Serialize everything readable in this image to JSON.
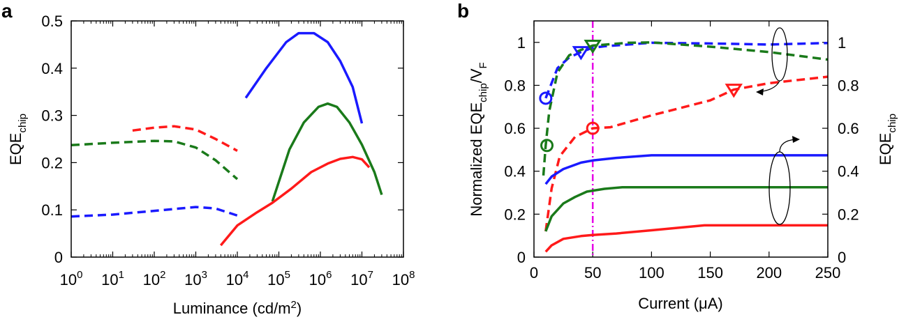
{
  "chart_data": [
    {
      "panel": "a",
      "type": "line",
      "xscale": "log",
      "xlim": [
        1,
        100000000
      ],
      "ylim": [
        0,
        0.5
      ],
      "xlabel_parts": [
        "Luminance (cd/m",
        "2",
        ")"
      ],
      "ylabel_main": "EQE",
      "ylabel_sub": "chip",
      "xtick_exponents": [
        "0",
        "1",
        "2",
        "3",
        "4",
        "5",
        "6",
        "7",
        "8"
      ],
      "ytick_labels": [
        "0",
        "0.1",
        "0.2",
        "0.3",
        "0.4",
        "0.5"
      ],
      "series": [
        {
          "name": "green-dashed",
          "color": "#1a7a1a",
          "dash": true,
          "points": [
            [
              1,
              0.237
            ],
            [
              10,
              0.242
            ],
            [
              100,
              0.246
            ],
            [
              300,
              0.245
            ],
            [
              1000,
              0.232
            ],
            [
              3000,
              0.205
            ],
            [
              10000,
              0.165
            ]
          ]
        },
        {
          "name": "red-dashed",
          "color": "#ff1a1a",
          "dash": true,
          "points": [
            [
              30,
              0.268
            ],
            [
              100,
              0.274
            ],
            [
              300,
              0.277
            ],
            [
              1000,
              0.27
            ],
            [
              3000,
              0.25
            ],
            [
              10000,
              0.225
            ]
          ]
        },
        {
          "name": "blue-dashed",
          "color": "#1a1aff",
          "dash": true,
          "points": [
            [
              1,
              0.086
            ],
            [
              10,
              0.09
            ],
            [
              100,
              0.098
            ],
            [
              1000,
              0.106
            ],
            [
              3000,
              0.103
            ],
            [
              10000,
              0.088
            ]
          ]
        },
        {
          "name": "blue-solid",
          "color": "#1a1aff",
          "dash": false,
          "points": [
            [
              16000,
              0.337
            ],
            [
              50000,
              0.4
            ],
            [
              150000,
              0.455
            ],
            [
              300000,
              0.474
            ],
            [
              700000,
              0.474
            ],
            [
              1500000,
              0.455
            ],
            [
              3000000,
              0.415
            ],
            [
              6000000,
              0.36
            ],
            [
              10000000,
              0.283
            ]
          ]
        },
        {
          "name": "green-solid",
          "color": "#1a7a1a",
          "dash": false,
          "points": [
            [
              70000,
              0.118
            ],
            [
              180000,
              0.228
            ],
            [
              400000,
              0.285
            ],
            [
              900000,
              0.318
            ],
            [
              1500000,
              0.325
            ],
            [
              2500000,
              0.318
            ],
            [
              5000000,
              0.285
            ],
            [
              10000000,
              0.238
            ],
            [
              20000000,
              0.18
            ],
            [
              30000000,
              0.132
            ]
          ]
        },
        {
          "name": "red-solid",
          "color": "#ff1a1a",
          "dash": false,
          "points": [
            [
              4000,
              0.025
            ],
            [
              10000,
              0.067
            ],
            [
              30000,
              0.095
            ],
            [
              70000,
              0.115
            ],
            [
              200000,
              0.145
            ],
            [
              600000,
              0.18
            ],
            [
              1500000,
              0.198
            ],
            [
              3000000,
              0.208
            ],
            [
              6000000,
              0.212
            ],
            [
              10000000,
              0.207
            ],
            [
              15000000,
              0.19
            ]
          ]
        }
      ]
    },
    {
      "panel": "b",
      "type": "line",
      "xlim": [
        0,
        250
      ],
      "ylim_left": [
        0,
        1.1
      ],
      "ylim_right": [
        0,
        1.1
      ],
      "xlabel": "Current (μA)",
      "ylabel_left_main": "Normalized EQE",
      "ylabel_left_sub": "chip",
      "ylabel_left_tail": "/V",
      "ylabel_left_sub2": "F",
      "ylabel_right_main": "EQE",
      "ylabel_right_sub": "chip",
      "xtick_labels": [
        "0",
        "50",
        "100",
        "150",
        "200",
        "250"
      ],
      "ytick_labels_left": [
        "0",
        "0.2",
        "0.4",
        "0.6",
        "0.8",
        "1"
      ],
      "ytick_labels_right": [
        "0",
        "0.2",
        "0.4",
        "0.6",
        "0.8",
        "1"
      ],
      "vline_x": 50,
      "vline_color": "#e600e6",
      "series": [
        {
          "name": "blue-dashed-normalized",
          "color": "#1a1aff",
          "dash": true,
          "points": [
            [
              10,
              0.74
            ],
            [
              20,
              0.88
            ],
            [
              30,
              0.93
            ],
            [
              40,
              0.955
            ],
            [
              50,
              0.975
            ],
            [
              60,
              0.982
            ],
            [
              80,
              0.99
            ],
            [
              100,
              0.998
            ],
            [
              150,
              0.995
            ],
            [
              200,
              0.99
            ],
            [
              250,
              0.997
            ]
          ]
        },
        {
          "name": "green-dashed-normalized",
          "color": "#1a7a1a",
          "dash": true,
          "points": [
            [
              8,
              0.38
            ],
            [
              10,
              0.52
            ],
            [
              13,
              0.68
            ],
            [
              20,
              0.86
            ],
            [
              30,
              0.94
            ],
            [
              40,
              0.965
            ],
            [
              50,
              0.985
            ],
            [
              80,
              0.998
            ],
            [
              100,
              1.0
            ],
            [
              150,
              0.98
            ],
            [
              200,
              0.955
            ],
            [
              250,
              0.92
            ]
          ]
        },
        {
          "name": "red-dashed-normalized",
          "color": "#ff1a1a",
          "dash": true,
          "points": [
            [
              10,
              0.12
            ],
            [
              15,
              0.32
            ],
            [
              22,
              0.47
            ],
            [
              35,
              0.56
            ],
            [
              50,
              0.6
            ],
            [
              65,
              0.605
            ],
            [
              100,
              0.66
            ],
            [
              150,
              0.73
            ],
            [
              170,
              0.78
            ],
            [
              200,
              0.81
            ],
            [
              250,
              0.84
            ]
          ]
        },
        {
          "name": "blue-solid-eqe",
          "color": "#1a1aff",
          "dash": false,
          "points": [
            [
              10,
              0.34
            ],
            [
              15,
              0.375
            ],
            [
              25,
              0.41
            ],
            [
              40,
              0.44
            ],
            [
              50,
              0.45
            ],
            [
              70,
              0.462
            ],
            [
              100,
              0.474
            ],
            [
              250,
              0.474
            ]
          ]
        },
        {
          "name": "green-solid-eqe",
          "color": "#1a7a1a",
          "dash": false,
          "points": [
            [
              10,
              0.12
            ],
            [
              15,
              0.19
            ],
            [
              25,
              0.25
            ],
            [
              35,
              0.28
            ],
            [
              45,
              0.305
            ],
            [
              60,
              0.318
            ],
            [
              75,
              0.325
            ],
            [
              250,
              0.325
            ]
          ]
        },
        {
          "name": "red-solid-eqe",
          "color": "#ff1a1a",
          "dash": false,
          "points": [
            [
              10,
              0.025
            ],
            [
              15,
              0.055
            ],
            [
              25,
              0.085
            ],
            [
              40,
              0.098
            ],
            [
              50,
              0.103
            ],
            [
              70,
              0.11
            ],
            [
              100,
              0.125
            ],
            [
              145,
              0.148
            ],
            [
              250,
              0.148
            ]
          ]
        }
      ],
      "markers": [
        {
          "shape": "circle",
          "color": "#1a1aff",
          "x": 10,
          "y": 0.74
        },
        {
          "shape": "circle",
          "color": "#1a7a1a",
          "x": 11,
          "y": 0.52
        },
        {
          "shape": "circle",
          "color": "#ff1a1a",
          "x": 50,
          "y": 0.6
        },
        {
          "shape": "triangle-down",
          "color": "#1a1aff",
          "x": 40,
          "y": 0.955
        },
        {
          "shape": "triangle-down",
          "color": "#1a7a1a",
          "x": 50,
          "y": 0.985
        },
        {
          "shape": "triangle-down",
          "color": "#ff1a1a",
          "x": 170,
          "y": 0.78
        }
      ]
    }
  ]
}
